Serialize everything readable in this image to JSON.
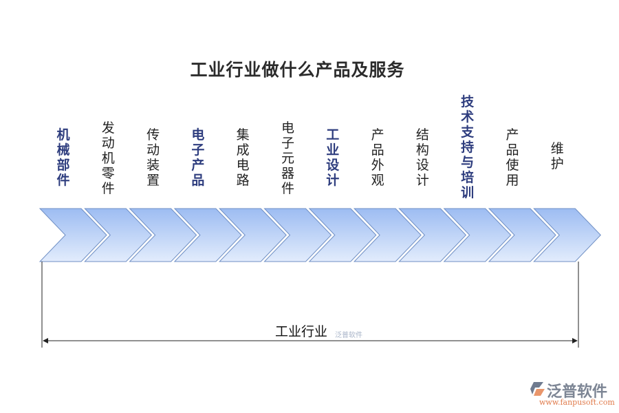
{
  "title": "工业行业做什么产品及服务",
  "steps": [
    {
      "label": "机械部件",
      "bold": true
    },
    {
      "label": "发动机零件",
      "bold": false
    },
    {
      "label": "传动装置",
      "bold": false
    },
    {
      "label": "电子产品",
      "bold": true
    },
    {
      "label": "集成电路",
      "bold": false
    },
    {
      "label": "电子元器件",
      "bold": false
    },
    {
      "label": "工业设计",
      "bold": true
    },
    {
      "label": "产品外观",
      "bold": false
    },
    {
      "label": "结构设计",
      "bold": false
    },
    {
      "label": "技术支持与培训",
      "bold": true
    },
    {
      "label": "产品使用",
      "bold": false
    },
    {
      "label": "维护",
      "bold": false
    }
  ],
  "span_label": "工业行业",
  "watermark": "泛普软件",
  "logo": {
    "name": "泛普软件",
    "url": "www.fanpusoft.com"
  },
  "colors": {
    "chevron_top": "#9dbcf2",
    "chevron_bottom": "#e2ecfc",
    "chevron_stroke": "#6f8fc4"
  }
}
